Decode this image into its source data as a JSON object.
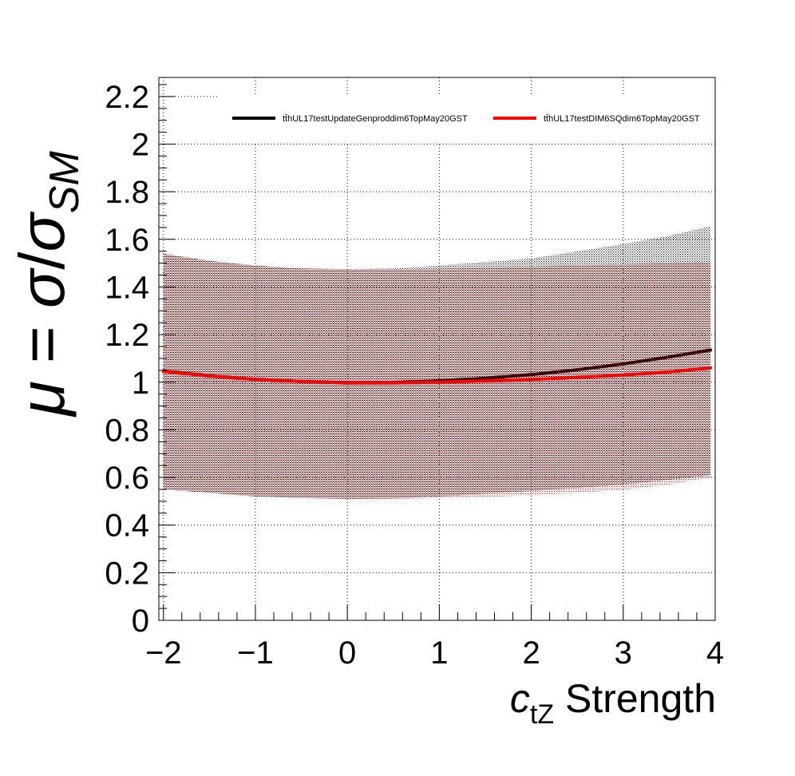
{
  "chart_data": {
    "type": "line",
    "title": "",
    "xlabel": {
      "symbol": "c",
      "subscript": "tZ",
      "text": " Strength"
    },
    "ylabel": {
      "mu": "μ",
      "eq": " = ",
      "sigma": "σ",
      "slash": "/",
      "sigma2": "σ",
      "subscript": "SM"
    },
    "xlim": [
      -2.05,
      4.0
    ],
    "ylim": [
      0,
      2.28
    ],
    "x_ticks": [
      {
        "value": -2,
        "label": "−2"
      },
      {
        "value": -1,
        "label": "−1"
      },
      {
        "value": 0,
        "label": "0"
      },
      {
        "value": 1,
        "label": "1"
      },
      {
        "value": 2,
        "label": "2"
      },
      {
        "value": 3,
        "label": "3"
      },
      {
        "value": 4,
        "label": "4"
      }
    ],
    "y_ticks": [
      {
        "value": 0,
        "label": "0"
      },
      {
        "value": 0.2,
        "label": "0.2"
      },
      {
        "value": 0.4,
        "label": "0.4"
      },
      {
        "value": 0.6,
        "label": "0.6"
      },
      {
        "value": 0.8,
        "label": "0.8"
      },
      {
        "value": 1.0,
        "label": "1"
      },
      {
        "value": 1.2,
        "label": "1.2"
      },
      {
        "value": 1.4,
        "label": "1.4"
      },
      {
        "value": 1.6,
        "label": "1.6"
      },
      {
        "value": 1.8,
        "label": "1.8"
      },
      {
        "value": 2.0,
        "label": "2"
      },
      {
        "value": 2.2,
        "label": "2.2"
      }
    ],
    "grid": true,
    "legend_position": "top-right",
    "series": [
      {
        "name": "tt̄hUL17testUpdateGenproddim6TopMay20GST",
        "color": "#000000",
        "x": [
          -2.0,
          -1.5,
          -1.0,
          -0.5,
          0.0,
          0.5,
          1.0,
          1.5,
          2.0,
          2.5,
          3.0,
          3.5,
          3.95
        ],
        "y": [
          1.047,
          1.027,
          1.012,
          1.003,
          0.998,
          0.999,
          1.006,
          1.017,
          1.032,
          1.052,
          1.077,
          1.106,
          1.135
        ],
        "band_upper": [
          1.54,
          1.51,
          1.49,
          1.478,
          1.475,
          1.478,
          1.49,
          1.505,
          1.52,
          1.55,
          1.58,
          1.615,
          1.655
        ],
        "band_lower": [
          0.55,
          0.535,
          0.52,
          0.513,
          0.51,
          0.512,
          0.52,
          0.532,
          0.544,
          0.556,
          0.57,
          0.59,
          0.61
        ]
      },
      {
        "name": "tt̄hUL17testDIM6SQdim6TopMay20GST",
        "color": "#ff0000",
        "x": [
          -2.0,
          -1.5,
          -1.0,
          -0.5,
          0.0,
          0.5,
          1.0,
          1.5,
          2.0,
          2.5,
          3.0,
          3.5,
          3.95
        ],
        "y": [
          1.045,
          1.026,
          1.012,
          1.003,
          0.998,
          0.998,
          1.0,
          1.005,
          1.012,
          1.02,
          1.03,
          1.043,
          1.06
        ],
        "band_upper": [
          1.54,
          1.51,
          1.49,
          1.478,
          1.475,
          1.474,
          1.476,
          1.48,
          1.485,
          1.49,
          1.495,
          1.5,
          1.505
        ],
        "band_lower": [
          0.55,
          0.535,
          0.52,
          0.513,
          0.51,
          0.51,
          0.513,
          0.518,
          0.525,
          0.535,
          0.548,
          0.57,
          0.6
        ]
      }
    ]
  }
}
